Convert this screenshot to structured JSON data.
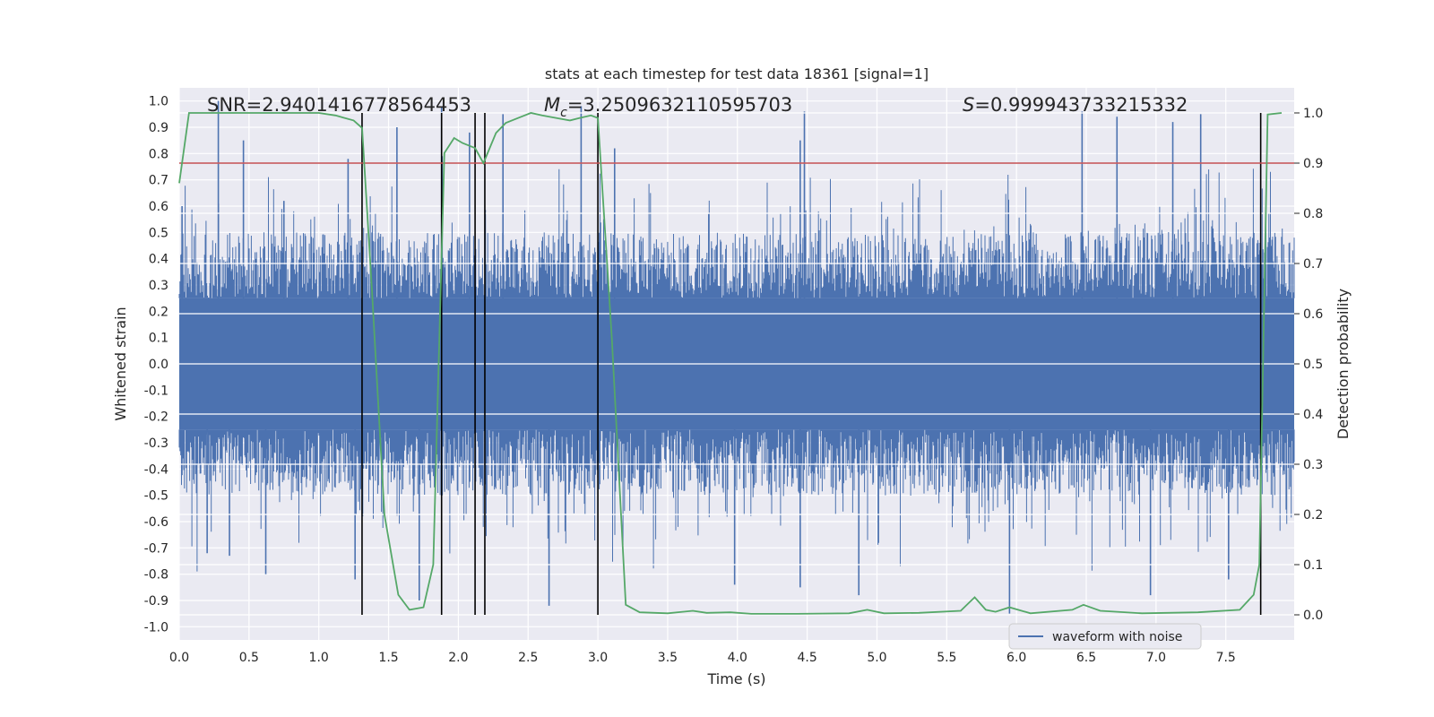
{
  "chart_data": {
    "type": "line",
    "title": "stats at each timestep for test data 18361 [signal=1]",
    "xlabel": "Time (s)",
    "ylabel_left": "Whitened strain",
    "ylabel_right": "Detection probability",
    "xlim": [
      0.0,
      7.99
    ],
    "ylim_left": [
      -1.05,
      1.05
    ],
    "ylim_right": [
      -0.05,
      1.05
    ],
    "x_ticks": [
      "0.0",
      "0.5",
      "1.0",
      "1.5",
      "2.0",
      "2.5",
      "3.0",
      "3.5",
      "4.0",
      "4.5",
      "5.0",
      "5.5",
      "6.0",
      "6.5",
      "7.0",
      "7.5"
    ],
    "y_ticks_left": [
      "1.0",
      "0.9",
      "0.8",
      "0.7",
      "0.6",
      "0.5",
      "0.4",
      "0.3",
      "0.2",
      "0.1",
      "0.0",
      "-0.1",
      "-0.2",
      "-0.3",
      "-0.4",
      "-0.5",
      "-0.6",
      "-0.7",
      "-0.8",
      "-0.9",
      "-1.0"
    ],
    "y_ticks_right": [
      "1.0",
      "0.9",
      "0.8",
      "0.7",
      "0.6",
      "0.5",
      "0.4",
      "0.3",
      "0.2",
      "0.1",
      "0.0"
    ],
    "annotations": {
      "snr": "SNR=2.9401416778564453",
      "mc_symbol": "M",
      "mc_sub": "c",
      "mc_value": "=3.2509632110595703",
      "s_symbol": "S",
      "s_value": "=0.999943733215332"
    },
    "threshold_line": {
      "y_right": 0.9,
      "color": "#c44e52"
    },
    "vertical_lines_x": [
      1.31,
      1.88,
      2.12,
      2.19,
      3.0,
      7.75
    ],
    "grid": true,
    "legend_position": "lower-right",
    "series": [
      {
        "name": "waveform with noise",
        "axis": "left",
        "color": "#4c72b0",
        "description_core_band": [
          -0.25,
          0.25
        ],
        "peaks_positive": [
          [
            0.02,
            0.6
          ],
          [
            0.28,
            1.0
          ],
          [
            0.46,
            0.85
          ],
          [
            0.75,
            0.62
          ],
          [
            1.21,
            0.78
          ],
          [
            1.56,
            0.9
          ],
          [
            1.88,
            0.98
          ],
          [
            2.08,
            0.88
          ],
          [
            2.32,
            0.95
          ],
          [
            2.88,
            0.98
          ],
          [
            3.12,
            0.82
          ],
          [
            4.45,
            0.85
          ],
          [
            4.48,
            0.96
          ],
          [
            6.47,
            0.96
          ],
          [
            6.72,
            0.94
          ],
          [
            7.12,
            0.92
          ],
          [
            7.32,
            0.95
          ]
        ],
        "peaks_negative": [
          [
            0.2,
            -0.72
          ],
          [
            0.36,
            -0.73
          ],
          [
            0.62,
            -0.8
          ],
          [
            1.26,
            -0.82
          ],
          [
            1.72,
            -0.9
          ],
          [
            2.65,
            -0.92
          ],
          [
            3.98,
            -0.84
          ],
          [
            4.45,
            -0.85
          ],
          [
            4.87,
            -0.88
          ],
          [
            5.95,
            -0.95
          ],
          [
            6.96,
            -0.88
          ],
          [
            7.52,
            -0.82
          ]
        ]
      },
      {
        "name": "detection probability",
        "axis": "right",
        "color": "#55a868",
        "x": [
          0.0,
          0.07,
          0.25,
          0.5,
          0.75,
          1.0,
          1.12,
          1.25,
          1.31,
          1.38,
          1.47,
          1.57,
          1.65,
          1.75,
          1.82,
          1.9,
          1.97,
          2.03,
          2.12,
          2.18,
          2.27,
          2.34,
          2.43,
          2.52,
          2.6,
          2.7,
          2.8,
          2.87,
          2.95,
          3.0,
          3.1,
          3.2,
          3.3,
          3.5,
          3.68,
          3.78,
          3.95,
          4.1,
          4.4,
          4.8,
          4.93,
          5.05,
          5.3,
          5.6,
          5.7,
          5.78,
          5.85,
          5.95,
          6.1,
          6.4,
          6.48,
          6.6,
          6.9,
          7.3,
          7.6,
          7.7,
          7.74,
          7.8,
          7.9
        ],
        "y": [
          0.86,
          1.0,
          1.0,
          1.0,
          1.0,
          1.0,
          0.995,
          0.985,
          0.97,
          0.65,
          0.2,
          0.04,
          0.01,
          0.015,
          0.1,
          0.92,
          0.95,
          0.94,
          0.93,
          0.9,
          0.96,
          0.98,
          0.99,
          1.0,
          0.995,
          0.99,
          0.985,
          0.99,
          0.995,
          0.99,
          0.55,
          0.02,
          0.005,
          0.003,
          0.008,
          0.004,
          0.005,
          0.002,
          0.002,
          0.003,
          0.01,
          0.003,
          0.004,
          0.008,
          0.035,
          0.01,
          0.006,
          0.015,
          0.003,
          0.01,
          0.02,
          0.008,
          0.003,
          0.005,
          0.01,
          0.04,
          0.1,
          0.997,
          1.0
        ]
      }
    ]
  }
}
